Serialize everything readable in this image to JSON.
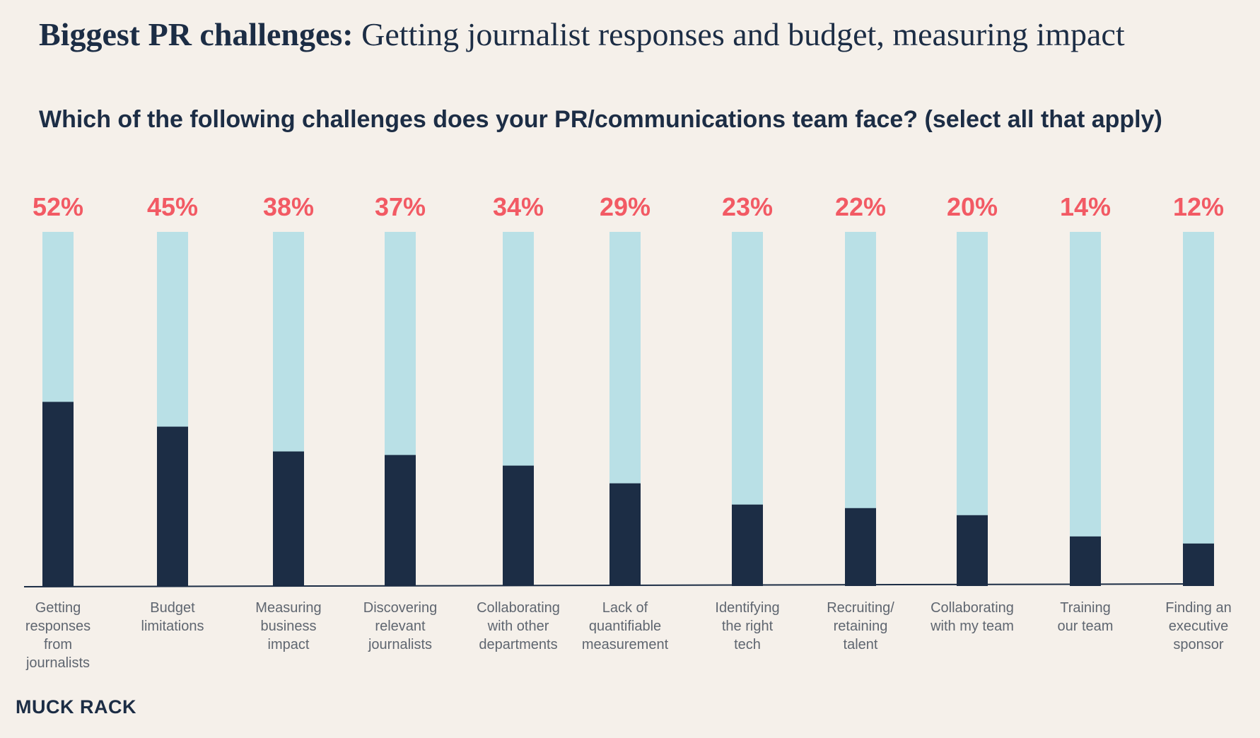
{
  "header": {
    "title_lead": "Biggest PR challenges:",
    "title_rest": "Getting journalist responses and budget, measuring impact",
    "subtitle": "Which of the following challenges does your PR/communications team face? (select all that apply)"
  },
  "logo": {
    "text": "MUCK RACK"
  },
  "colors": {
    "bar_fill": "#1c2d45",
    "bar_track": "#b9e0e6",
    "value_label": "#f25a64",
    "background": "#f5f0ea",
    "category_label": "#5f6670"
  },
  "chart_data": {
    "type": "bar",
    "title": "Which of the following challenges does your PR/communications team face? (select all that apply)",
    "categories": [
      [
        "Getting",
        "responses",
        "from",
        "journalists"
      ],
      [
        "Budget",
        "limitations"
      ],
      [
        "Measuring",
        "business",
        "impact"
      ],
      [
        "Discovering",
        "relevant",
        "journalists"
      ],
      [
        "Collaborating",
        "with other",
        "departments"
      ],
      [
        "Lack of",
        "quantifiable",
        "measurement"
      ],
      [
        "Identifying",
        "the right",
        "tech"
      ],
      [
        "Recruiting/",
        "retaining",
        "talent"
      ],
      [
        "Collaborating",
        "with my team"
      ],
      [
        "Training",
        "our team"
      ],
      [
        "Finding an",
        "executive",
        "sponsor"
      ]
    ],
    "values": [
      52,
      45,
      38,
      37,
      34,
      29,
      23,
      22,
      20,
      14,
      12
    ],
    "value_labels": [
      "52%",
      "45%",
      "38%",
      "37%",
      "34%",
      "29%",
      "23%",
      "22%",
      "20%",
      "14%",
      "12%"
    ],
    "unit": "%",
    "ylim": [
      0,
      100
    ],
    "grid": false,
    "legend": "none"
  }
}
